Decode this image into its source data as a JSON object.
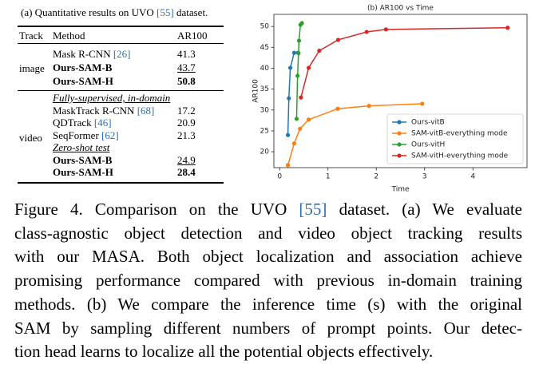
{
  "table": {
    "title": [
      "(a) Quantitative results on UVO ",
      "[55]",
      " dataset."
    ],
    "header": [
      "Track",
      "Method",
      "AR100"
    ],
    "groups": [
      {
        "track": "image",
        "rows": [
          {
            "method": "Mask R-CNN ",
            "ref": "[26]",
            "value": "41.3"
          },
          {
            "method": "Ours-SAM-B",
            "value": "43.7",
            "bold_method": true,
            "underline_value": true
          },
          {
            "method": "Ours-SAM-H",
            "value": "50.8",
            "bold_method": true,
            "bold_value": true
          }
        ]
      },
      {
        "track": "video",
        "rows": [
          {
            "method": "Fully-supervised, in-domain",
            "heading": true
          },
          {
            "method": "MaskTrack R-CNN ",
            "ref": "[68]",
            "value": "17.2"
          },
          {
            "method": "QDTrack ",
            "ref": "[46]",
            "value": "20.9"
          },
          {
            "method": "SeqFormer ",
            "ref": "[62]",
            "value": "21.3"
          },
          {
            "method": "Zero-shot test",
            "heading": true
          },
          {
            "method": "Ours-SAM-B",
            "value": "24.9",
            "bold_method": true,
            "underline_value": true
          },
          {
            "method": "Ours-SAM-H",
            "value": "28.4",
            "bold_method": true,
            "bold_value": true
          }
        ]
      }
    ]
  },
  "chart_data": {
    "type": "line",
    "title": "(b) AR100 vs Time",
    "xlabel": "Time",
    "ylabel": "AR100",
    "xlim": [
      -0.12,
      5.12
    ],
    "ylim": [
      16.2,
      52.9
    ],
    "xticks": [
      0,
      1,
      2,
      3,
      4
    ],
    "yticks": [
      20,
      25,
      30,
      35,
      40,
      45,
      50
    ],
    "legend": "lower right",
    "series": [
      {
        "name": "Ours-vitB",
        "color": "#1f77b4",
        "x": [
          0.17,
          0.19,
          0.22,
          0.3,
          0.38
        ],
        "values": [
          24,
          32.8,
          40.1,
          43.7,
          43.7
        ]
      },
      {
        "name": "SAM-vitB-everything mode",
        "color": "#ff7f0e",
        "x": [
          0.17,
          0.3,
          0.42,
          0.6,
          1.2,
          1.85,
          2.95
        ],
        "values": [
          16.8,
          22,
          25.5,
          27.7,
          30.3,
          31.0,
          31.5
        ]
      },
      {
        "name": "Ours-vitH",
        "color": "#2ca02c",
        "x": [
          0.35,
          0.37,
          0.39,
          0.4,
          0.43,
          0.46
        ],
        "values": [
          27.9,
          38.2,
          43.6,
          46.6,
          50.4,
          50.8
        ]
      },
      {
        "name": "SAM-vitH-everything mode",
        "color": "#d62728",
        "x": [
          0.44,
          0.6,
          0.82,
          1.21,
          1.8,
          2.2,
          4.72
        ],
        "values": [
          33,
          40.1,
          44.2,
          46.8,
          48.7,
          49.3,
          49.7
        ]
      }
    ]
  },
  "caption": {
    "lines": [
      [
        "Figure 4. Comparison on the UVO ",
        "[55]",
        " dataset. (a) We evaluate"
      ],
      [
        "class-agnostic object detection and video object tracking results"
      ],
      [
        "with our MASA. Both object localization and association achieve"
      ],
      [
        "promising performance compared with previous in-domain training"
      ],
      [
        "methods. (b) We compare the inference time (s) with the original"
      ],
      [
        "SAM by sampling different numbers of prompt points. Our detec-"
      ],
      [
        "tion head learns to localize all the potential objects effectively."
      ]
    ]
  }
}
